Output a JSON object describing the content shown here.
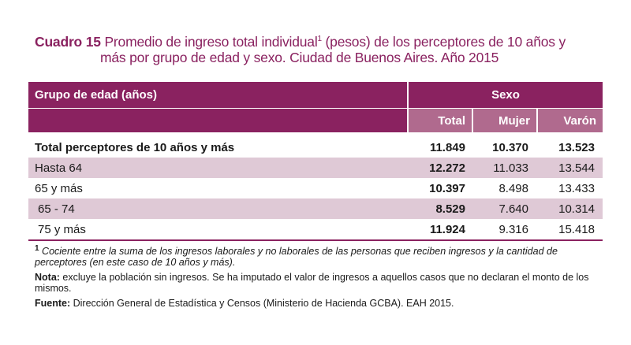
{
  "title": {
    "label": "Cuadro 15",
    "line1": "Promedio de ingreso total individual",
    "sup": "1",
    "line1_rest": " (pesos) de los perceptores de 10 años y",
    "line2": "más por grupo de edad y sexo. Ciudad de Buenos Aires. Año 2015"
  },
  "table": {
    "group_header": "Grupo de edad (años)",
    "sexo_header": "Sexo",
    "columns": [
      "Total",
      "Mujer",
      "Varón"
    ],
    "rows": [
      {
        "label": "Total perceptores de 10 años y más",
        "total": "11.849",
        "mujer": "10.370",
        "varon": "13.523"
      },
      {
        "label": "Hasta 64",
        "total": "12.272",
        "mujer": "11.033",
        "varon": "13.544"
      },
      {
        "label": "65 y más",
        "total": "10.397",
        "mujer": "8.498",
        "varon": "13.433"
      },
      {
        "label": "65 - 74",
        "total": "8.529",
        "mujer": "7.640",
        "varon": "10.314"
      },
      {
        "label": "75 y más",
        "total": "11.924",
        "mujer": "9.316",
        "varon": "15.418"
      }
    ]
  },
  "notes": {
    "footnote_mark": "1",
    "footnote": "Cociente entre la suma de los ingresos laborales y no laborales de las personas que reciben ingresos y la cantidad de perceptores (en este caso de 10 años y más).",
    "nota_label": "Nota:",
    "nota": " excluye la población sin ingresos. Se ha imputado el valor de ingresos a aquellos casos que no declaran el monto de los mismos.",
    "fuente_label": "Fuente:",
    "fuente": " Dirección General de Estadística y Censos (Ministerio de Hacienda GCBA). EAH 2015."
  },
  "colors": {
    "accent": "#8a2260",
    "accent_light": "#b06a8e",
    "row_shade": "#dfc9d6"
  }
}
